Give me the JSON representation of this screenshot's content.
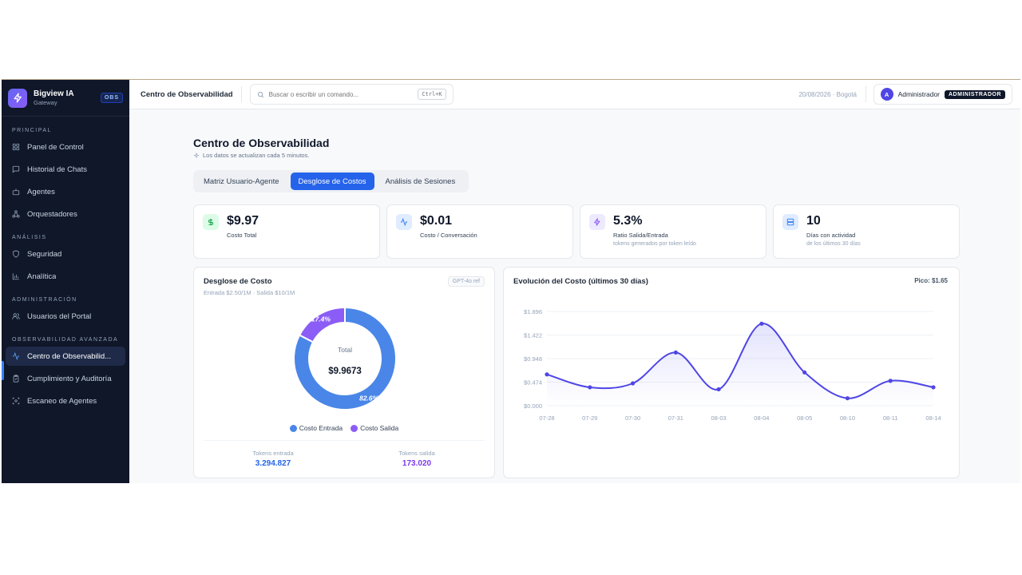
{
  "sidebar": {
    "brand_name": "Bigview IA",
    "brand_sub": "Gateway",
    "brand_badge": "OBS",
    "sections": {
      "principal": "PRINCIPAL",
      "analisis": "ANÁLISIS",
      "administracion": "ADMINISTRACIÓN",
      "observabilidad": "OBSERVABILIDAD AVANZADA"
    },
    "items": {
      "panel": "Panel de Control",
      "historial": "Historial de Chats",
      "agentes": "Agentes",
      "orquestadores": "Orquestadores",
      "seguridad": "Seguridad",
      "analitica": "Analítica",
      "usuarios": "Usuarios del Portal",
      "centro": "Centro de Observabilid...",
      "cumplimiento": "Cumplimiento y Auditoría",
      "escaneo": "Escaneo de Agentes"
    }
  },
  "topbar": {
    "title": "Centro de Observabilidad",
    "search_placeholder": "Buscar o escribir un comando...",
    "shortcut": "Ctrl+K",
    "date": "20/08/2026 · Bogotá",
    "user_initial": "A",
    "user_name": "Administrador",
    "role": "ADMINISTRADOR"
  },
  "page": {
    "title": "Centro de Observabilidad",
    "subtitle": "Los datos se actualizan cada 5 minutos.",
    "tabs": [
      "Matriz Usuario-Agente",
      "Desglose de Costos",
      "Análisis de Sesiones"
    ],
    "active_tab": 1
  },
  "kpis": [
    {
      "value": "$9.97",
      "label": "Costo Total",
      "sub": "",
      "icon": "dollar-icon",
      "icon_color": "#16a34a",
      "icon_bg": "#dcfce7"
    },
    {
      "value": "$0.01",
      "label": "Costo / Conversación",
      "sub": "",
      "icon": "activity-icon",
      "icon_color": "#3b82f6",
      "icon_bg": "#e0ecff"
    },
    {
      "value": "5.3%",
      "label": "Ratio Salida/Entrada",
      "sub": "tokens generados por token leído",
      "icon": "zap-icon",
      "icon_color": "#8b5cf6",
      "icon_bg": "#ede9fe"
    },
    {
      "value": "10",
      "label": "Días con actividad",
      "sub": "de los últimos 30 días",
      "icon": "server-icon",
      "icon_color": "#3b82f6",
      "icon_bg": "#e0ecff"
    }
  ],
  "breakdown": {
    "title": "Desglose de Costo",
    "subtitle": "Entrada $2.50/1M · Salida $10/1M",
    "badge": "GPT-4o ref",
    "total_label": "Total",
    "total_value": "$9.9673",
    "tokens_in_label": "Tokens entrada",
    "tokens_in_value": "3.294.827",
    "tokens_out_label": "Tokens salida",
    "tokens_out_value": "173.020"
  },
  "evolution": {
    "title": "Evolución del Costo (últimos 30 días)",
    "peak": "Pico: $1.65"
  },
  "chart_data": [
    {
      "type": "pie",
      "donut": true,
      "categories": [
        "Costo Entrada",
        "Costo Salida"
      ],
      "values": [
        82.6,
        17.4
      ],
      "data_labels": [
        "82.6%",
        "17.4%"
      ],
      "colors": [
        "#4a86e8",
        "#8b5cf6"
      ],
      "legend_position": "bottom"
    },
    {
      "type": "line",
      "smooth": true,
      "x": [
        "07-28",
        "07-29",
        "07-30",
        "07-31",
        "08-03",
        "08-04",
        "08-05",
        "08-10",
        "08-11",
        "08-14"
      ],
      "series": [
        {
          "values": [
            0.63,
            0.37,
            0.45,
            1.07,
            0.33,
            1.65,
            0.67,
            0.15,
            0.5,
            0.37
          ],
          "color": "#4f46e5"
        }
      ],
      "yticks": [
        "$1.896",
        "$1.422",
        "$0.948",
        "$0.474",
        "$0.000"
      ],
      "ylim": [
        0,
        1.896
      ],
      "grid": true
    }
  ]
}
